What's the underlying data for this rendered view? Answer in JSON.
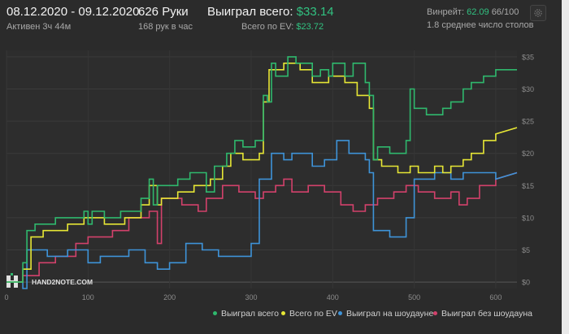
{
  "header": {
    "date_range": "08.12.2020 - 09.12.2020",
    "active_time": "Активен 3ч 44м",
    "hands": "626 Руки",
    "hands_per_hour": "168 рук в час",
    "won_total_label": "Выиграл всего:",
    "won_total_value": "$33.14",
    "ev_total_label": "Всего по EV:",
    "ev_total_value": "$23.72",
    "winrate_label": "Винрейт:",
    "winrate_value": "62.09",
    "winrate_rest": "66/100",
    "avg_tables": "1.8 среднее число столов"
  },
  "watermark": "HAND2NOTE.COM",
  "colors": {
    "green": "#2fb86d",
    "yellow": "#e6e635",
    "blue": "#3e93d8",
    "pink": "#d2416b",
    "accent": "#31c281"
  },
  "legend": [
    {
      "label": "Выиграл всего",
      "color": "#2fb86d"
    },
    {
      "label": "Всего по EV",
      "color": "#e6e635"
    },
    {
      "label": "Выиграл на шоудауне",
      "color": "#3e93d8"
    },
    {
      "label": "Выиграл без шоудауна",
      "color": "#d2416b"
    }
  ],
  "chart_data": {
    "type": "line",
    "xlim": [
      0,
      626
    ],
    "ylim": [
      -1,
      36
    ],
    "x_ticks": [
      "0",
      "100",
      "200",
      "300",
      "400",
      "500",
      "600"
    ],
    "y_ticks": [
      "$0",
      "$5",
      "$10",
      "$15",
      "$20",
      "$25",
      "$30",
      "$35"
    ],
    "grid": true,
    "legend_position": "bottom-right",
    "series": [
      {
        "name": "Выиграл всего",
        "color": "#2fb86d",
        "points": [
          [
            0,
            0
          ],
          [
            20,
            0
          ],
          [
            20,
            3
          ],
          [
            25,
            3
          ],
          [
            25,
            8
          ],
          [
            35,
            8
          ],
          [
            35,
            9
          ],
          [
            60,
            9
          ],
          [
            60,
            10
          ],
          [
            95,
            10
          ],
          [
            95,
            11
          ],
          [
            100,
            11
          ],
          [
            100,
            9
          ],
          [
            105,
            9
          ],
          [
            105,
            11
          ],
          [
            120,
            11
          ],
          [
            120,
            10
          ],
          [
            140,
            10
          ],
          [
            140,
            11
          ],
          [
            165,
            11
          ],
          [
            165,
            13
          ],
          [
            175,
            13
          ],
          [
            175,
            16
          ],
          [
            180,
            16
          ],
          [
            180,
            12
          ],
          [
            185,
            12
          ],
          [
            185,
            15
          ],
          [
            210,
            15
          ],
          [
            210,
            16
          ],
          [
            225,
            16
          ],
          [
            225,
            17
          ],
          [
            245,
            17
          ],
          [
            245,
            14
          ],
          [
            255,
            14
          ],
          [
            255,
            18
          ],
          [
            270,
            18
          ],
          [
            270,
            20
          ],
          [
            280,
            20
          ],
          [
            280,
            22
          ],
          [
            290,
            22
          ],
          [
            290,
            21
          ],
          [
            305,
            21
          ],
          [
            305,
            22
          ],
          [
            315,
            22
          ],
          [
            315,
            29
          ],
          [
            320,
            29
          ],
          [
            320,
            28
          ],
          [
            325,
            28
          ],
          [
            325,
            34
          ],
          [
            330,
            34
          ],
          [
            330,
            32
          ],
          [
            345,
            32
          ],
          [
            345,
            35
          ],
          [
            355,
            35
          ],
          [
            355,
            34
          ],
          [
            375,
            34
          ],
          [
            375,
            32
          ],
          [
            385,
            32
          ],
          [
            385,
            33
          ],
          [
            395,
            33
          ],
          [
            395,
            32
          ],
          [
            400,
            32
          ],
          [
            400,
            34
          ],
          [
            415,
            34
          ],
          [
            415,
            32
          ],
          [
            425,
            32
          ],
          [
            425,
            34
          ],
          [
            440,
            34
          ],
          [
            440,
            31
          ],
          [
            445,
            31
          ],
          [
            445,
            29
          ],
          [
            450,
            29
          ],
          [
            450,
            19
          ],
          [
            455,
            19
          ],
          [
            455,
            21
          ],
          [
            470,
            21
          ],
          [
            470,
            20
          ],
          [
            490,
            20
          ],
          [
            490,
            22
          ],
          [
            495,
            22
          ],
          [
            495,
            30
          ],
          [
            500,
            30
          ],
          [
            500,
            27
          ],
          [
            515,
            27
          ],
          [
            515,
            26
          ],
          [
            535,
            26
          ],
          [
            535,
            27
          ],
          [
            545,
            27
          ],
          [
            545,
            28
          ],
          [
            560,
            28
          ],
          [
            560,
            30
          ],
          [
            570,
            30
          ],
          [
            570,
            31
          ],
          [
            585,
            31
          ],
          [
            585,
            32
          ],
          [
            600,
            32
          ],
          [
            600,
            33
          ],
          [
            626,
            33
          ]
        ]
      },
      {
        "name": "Всего по EV",
        "color": "#e6e635",
        "points": [
          [
            0,
            0
          ],
          [
            20,
            0
          ],
          [
            20,
            2
          ],
          [
            30,
            2
          ],
          [
            30,
            7
          ],
          [
            45,
            7
          ],
          [
            45,
            8
          ],
          [
            75,
            8
          ],
          [
            75,
            9
          ],
          [
            95,
            9
          ],
          [
            95,
            10
          ],
          [
            120,
            10
          ],
          [
            120,
            9
          ],
          [
            145,
            9
          ],
          [
            145,
            10
          ],
          [
            165,
            10
          ],
          [
            165,
            12
          ],
          [
            175,
            12
          ],
          [
            175,
            15
          ],
          [
            185,
            15
          ],
          [
            185,
            12
          ],
          [
            190,
            12
          ],
          [
            190,
            13
          ],
          [
            210,
            13
          ],
          [
            210,
            14
          ],
          [
            230,
            14
          ],
          [
            230,
            15
          ],
          [
            250,
            15
          ],
          [
            250,
            16
          ],
          [
            265,
            16
          ],
          [
            265,
            18
          ],
          [
            275,
            18
          ],
          [
            275,
            20
          ],
          [
            290,
            20
          ],
          [
            290,
            19
          ],
          [
            310,
            19
          ],
          [
            310,
            20
          ],
          [
            315,
            20
          ],
          [
            315,
            28
          ],
          [
            322,
            28
          ],
          [
            322,
            33
          ],
          [
            340,
            33
          ],
          [
            340,
            34
          ],
          [
            360,
            34
          ],
          [
            360,
            33
          ],
          [
            375,
            33
          ],
          [
            375,
            31
          ],
          [
            395,
            31
          ],
          [
            395,
            32
          ],
          [
            415,
            32
          ],
          [
            415,
            31
          ],
          [
            430,
            31
          ],
          [
            430,
            29
          ],
          [
            445,
            29
          ],
          [
            445,
            27
          ],
          [
            450,
            27
          ],
          [
            450,
            19
          ],
          [
            460,
            19
          ],
          [
            460,
            18
          ],
          [
            480,
            18
          ],
          [
            480,
            17
          ],
          [
            495,
            17
          ],
          [
            495,
            18
          ],
          [
            505,
            18
          ],
          [
            505,
            17
          ],
          [
            525,
            17
          ],
          [
            525,
            18
          ],
          [
            535,
            18
          ],
          [
            535,
            17
          ],
          [
            545,
            17
          ],
          [
            545,
            18
          ],
          [
            560,
            18
          ],
          [
            560,
            19
          ],
          [
            570,
            19
          ],
          [
            570,
            20
          ],
          [
            585,
            20
          ],
          [
            585,
            22
          ],
          [
            600,
            22
          ],
          [
            600,
            23
          ],
          [
            626,
            24
          ]
        ]
      },
      {
        "name": "Выиграл на шоудауне",
        "color": "#3e93d8",
        "points": [
          [
            0,
            0
          ],
          [
            20,
            0
          ],
          [
            20,
            -1
          ],
          [
            25,
            -1
          ],
          [
            25,
            5
          ],
          [
            50,
            5
          ],
          [
            50,
            4
          ],
          [
            75,
            4
          ],
          [
            75,
            5
          ],
          [
            100,
            5
          ],
          [
            100,
            3
          ],
          [
            115,
            3
          ],
          [
            115,
            4
          ],
          [
            150,
            4
          ],
          [
            150,
            5
          ],
          [
            170,
            5
          ],
          [
            170,
            3
          ],
          [
            185,
            3
          ],
          [
            185,
            2
          ],
          [
            200,
            2
          ],
          [
            200,
            3
          ],
          [
            220,
            3
          ],
          [
            220,
            6
          ],
          [
            240,
            6
          ],
          [
            240,
            5
          ],
          [
            260,
            5
          ],
          [
            260,
            4
          ],
          [
            300,
            4
          ],
          [
            300,
            6
          ],
          [
            310,
            6
          ],
          [
            310,
            16
          ],
          [
            325,
            16
          ],
          [
            325,
            20
          ],
          [
            340,
            20
          ],
          [
            340,
            19
          ],
          [
            350,
            19
          ],
          [
            350,
            20
          ],
          [
            375,
            20
          ],
          [
            375,
            18
          ],
          [
            390,
            18
          ],
          [
            390,
            19
          ],
          [
            405,
            19
          ],
          [
            405,
            22
          ],
          [
            420,
            22
          ],
          [
            420,
            20
          ],
          [
            440,
            20
          ],
          [
            440,
            19
          ],
          [
            445,
            19
          ],
          [
            445,
            17
          ],
          [
            450,
            17
          ],
          [
            450,
            8
          ],
          [
            470,
            8
          ],
          [
            470,
            7
          ],
          [
            490,
            7
          ],
          [
            490,
            10
          ],
          [
            500,
            10
          ],
          [
            500,
            16
          ],
          [
            525,
            16
          ],
          [
            525,
            17
          ],
          [
            545,
            17
          ],
          [
            545,
            16
          ],
          [
            560,
            16
          ],
          [
            560,
            17
          ],
          [
            600,
            17
          ],
          [
            600,
            16
          ],
          [
            626,
            17
          ]
        ]
      },
      {
        "name": "Выиграл без шоудауна",
        "color": "#d2416b",
        "points": [
          [
            0,
            0
          ],
          [
            20,
            0
          ],
          [
            20,
            1
          ],
          [
            40,
            1
          ],
          [
            40,
            3
          ],
          [
            60,
            3
          ],
          [
            60,
            4
          ],
          [
            85,
            4
          ],
          [
            85,
            6
          ],
          [
            100,
            6
          ],
          [
            100,
            7
          ],
          [
            130,
            7
          ],
          [
            130,
            8
          ],
          [
            150,
            8
          ],
          [
            150,
            10
          ],
          [
            175,
            10
          ],
          [
            175,
            11
          ],
          [
            185,
            11
          ],
          [
            185,
            6
          ],
          [
            190,
            6
          ],
          [
            190,
            13
          ],
          [
            215,
            13
          ],
          [
            215,
            12
          ],
          [
            235,
            12
          ],
          [
            235,
            11
          ],
          [
            245,
            11
          ],
          [
            245,
            13
          ],
          [
            265,
            13
          ],
          [
            265,
            15
          ],
          [
            285,
            15
          ],
          [
            285,
            14
          ],
          [
            305,
            14
          ],
          [
            305,
            13
          ],
          [
            315,
            13
          ],
          [
            315,
            14
          ],
          [
            330,
            14
          ],
          [
            330,
            15
          ],
          [
            340,
            15
          ],
          [
            340,
            16
          ],
          [
            350,
            16
          ],
          [
            350,
            14
          ],
          [
            370,
            14
          ],
          [
            370,
            15
          ],
          [
            390,
            15
          ],
          [
            390,
            14
          ],
          [
            410,
            14
          ],
          [
            410,
            12
          ],
          [
            425,
            12
          ],
          [
            425,
            11
          ],
          [
            440,
            11
          ],
          [
            440,
            12
          ],
          [
            455,
            12
          ],
          [
            455,
            13
          ],
          [
            475,
            13
          ],
          [
            475,
            14
          ],
          [
            490,
            14
          ],
          [
            490,
            15
          ],
          [
            505,
            15
          ],
          [
            505,
            14
          ],
          [
            525,
            14
          ],
          [
            525,
            13
          ],
          [
            545,
            13
          ],
          [
            545,
            14
          ],
          [
            555,
            14
          ],
          [
            555,
            12
          ],
          [
            565,
            12
          ],
          [
            565,
            13
          ],
          [
            580,
            13
          ],
          [
            580,
            15
          ],
          [
            600,
            15
          ],
          [
            600,
            16
          ],
          [
            626,
            17
          ]
        ]
      }
    ]
  }
}
